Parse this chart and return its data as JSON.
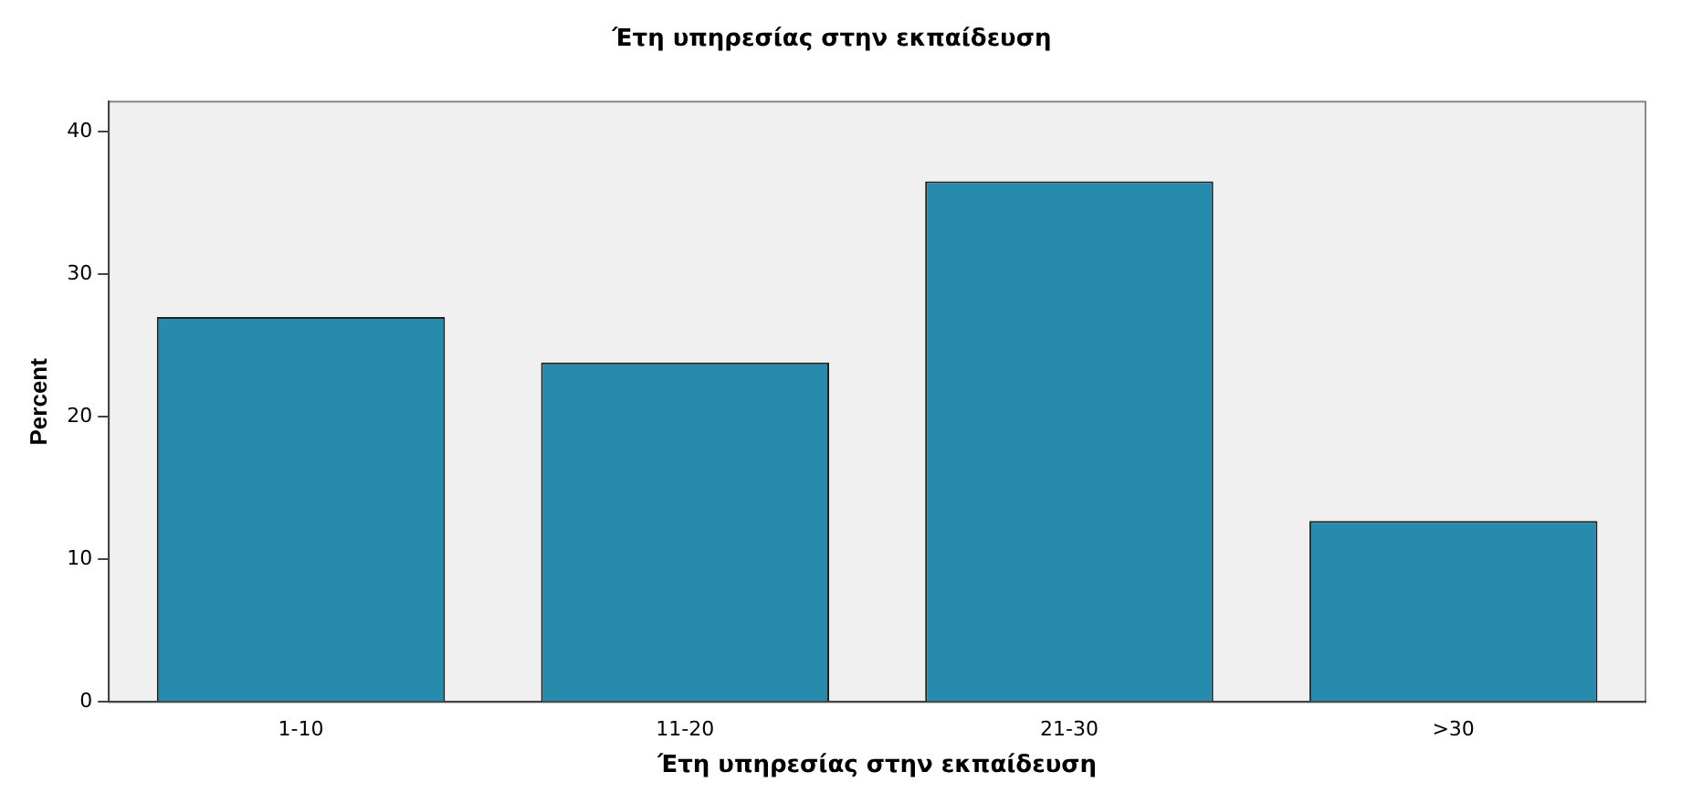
{
  "chart_data": {
    "type": "bar",
    "title": "Έτη υπηρεσίας στην εκπαίδευση",
    "xlabel": "Έτη υπηρεσίας στην εκπαίδευση",
    "ylabel": "Percent",
    "categories": [
      "1-10",
      "11-20",
      "21-30",
      ">30"
    ],
    "values": [
      27.0,
      23.8,
      36.5,
      12.7
    ],
    "color": "#268bad",
    "ylim": [
      0,
      42.1
    ],
    "yticks": [
      0,
      10,
      20,
      30,
      40
    ],
    "grid": false,
    "legend": false
  }
}
